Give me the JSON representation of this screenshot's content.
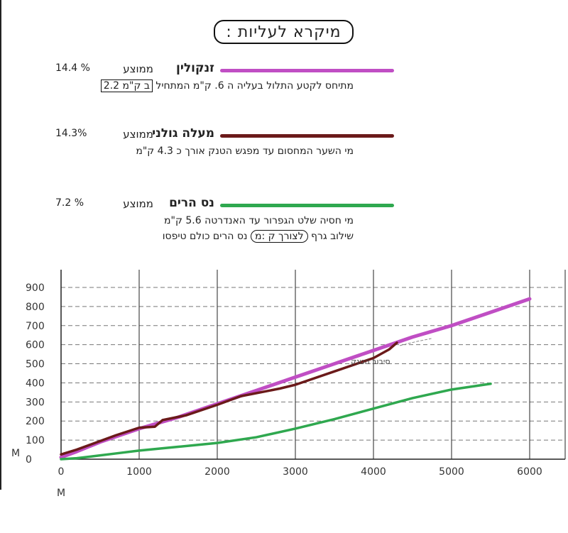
{
  "legend_title": "מיקרא לעליות :",
  "legend": [
    {
      "name": "זנקולין",
      "avg_label": "ממוצע",
      "avg": "14.4 %",
      "color": "#c04ec4",
      "desc_before": "מתיחס לקטע התלול בעליה ה 6. ק\"מ המתחיל",
      "desc_boxed": "ב ק\"מ 2.2"
    },
    {
      "name": "מעלה גולני",
      "avg_label": "ממוצע",
      "avg": "14.3%",
      "color": "#6b1a1a",
      "desc": "מי השער המחסום עד מפגש הטנק אורך כ 4.3 ק\"מ"
    },
    {
      "name": "נס הרים",
      "avg_label": "ממוצע",
      "avg": "7.2 %",
      "color": "#2fa84f",
      "desc": "מי חסיה שלט הגפרור עד האנדרטה 5.6 ק\"מ",
      "desc2_before": "שילוב גרף",
      "desc2_boxed": "לצורך ק :מ",
      "desc2_after": "נס הרים כולם טיפסו"
    }
  ],
  "chart_data": {
    "type": "line",
    "xlabel": "M",
    "ylabel": "M",
    "xlim": [
      0,
      6000
    ],
    "ylim": [
      0,
      950
    ],
    "x_ticks": [
      0,
      1000,
      2000,
      3000,
      4000,
      5000,
      6000
    ],
    "y_ticks": [
      0,
      100,
      200,
      300,
      400,
      500,
      600,
      700,
      800,
      900
    ],
    "annotation": {
      "text": "סיבוב הטנק",
      "x": 4650,
      "y": 580
    },
    "series": [
      {
        "name": "זנקולין",
        "color": "#c04ec4",
        "x": [
          0,
          200,
          500,
          1000,
          1500,
          2000,
          2500,
          3000,
          3500,
          4000,
          4500,
          5000,
          5500,
          6000
        ],
        "y": [
          10,
          40,
          90,
          160,
          220,
          290,
          360,
          430,
          500,
          570,
          640,
          700,
          770,
          840
        ]
      },
      {
        "name": "מעלה גולני",
        "color": "#6b1a1a",
        "x": [
          0,
          200,
          400,
          700,
          1000,
          1200,
          1300,
          1600,
          2000,
          2300,
          2800,
          3000,
          3500,
          4000,
          4200,
          4300
        ],
        "y": [
          25,
          50,
          80,
          125,
          165,
          170,
          205,
          230,
          285,
          330,
          370,
          390,
          460,
          530,
          575,
          610
        ]
      },
      {
        "name": "נס הרים",
        "color": "#2fa84f",
        "x": [
          0,
          200,
          400,
          700,
          1000,
          1500,
          2000,
          2500,
          3000,
          3500,
          4000,
          4500,
          5000,
          5500
        ],
        "y": [
          0,
          5,
          15,
          30,
          45,
          65,
          85,
          115,
          160,
          210,
          265,
          320,
          365,
          395
        ]
      }
    ]
  }
}
